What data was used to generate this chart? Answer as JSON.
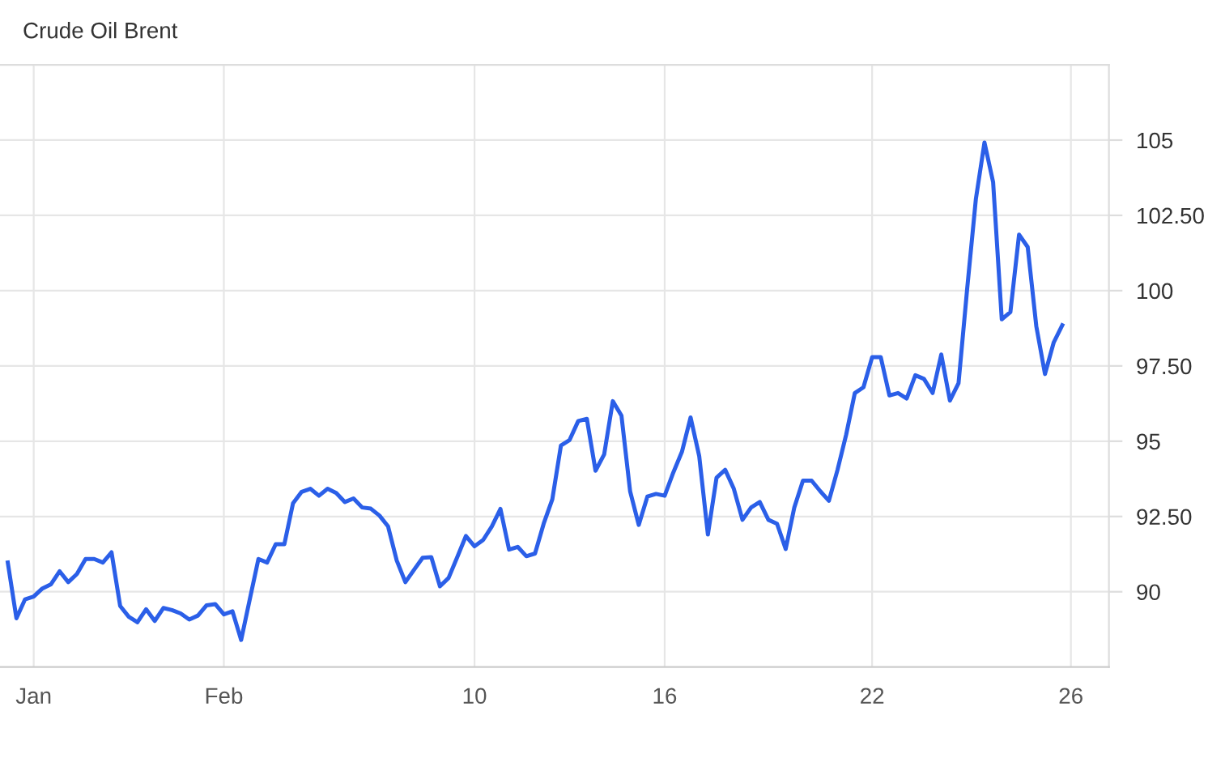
{
  "chart_data": {
    "type": "line",
    "title": "Crude Oil Brent",
    "categories": [
      null,
      null,
      null,
      "Jan",
      null,
      null,
      null,
      null,
      null,
      null,
      null,
      null,
      null,
      null,
      null,
      null,
      null,
      null,
      null,
      null,
      null,
      null,
      null,
      null,
      null,
      "Feb",
      null,
      null,
      null,
      null,
      null,
      null,
      null,
      null,
      null,
      null,
      null,
      null,
      null,
      null,
      null,
      null,
      null,
      null,
      null,
      null,
      null,
      null,
      null,
      null,
      null,
      null,
      null,
      null,
      "10",
      null,
      null,
      null,
      null,
      null,
      null,
      null,
      null,
      null,
      null,
      null,
      null,
      null,
      null,
      null,
      null,
      null,
      null,
      null,
      null,
      null,
      "16",
      null,
      null,
      null,
      null,
      null,
      null,
      null,
      null,
      null,
      null,
      null,
      null,
      null,
      null,
      null,
      null,
      null,
      null,
      null,
      null,
      null,
      null,
      null,
      "22",
      null,
      null,
      null,
      null,
      null,
      null,
      null,
      null,
      null,
      null,
      null,
      null,
      null,
      null,
      null,
      null,
      null,
      null,
      null,
      null,
      null,
      null,
      "26"
    ],
    "series": [
      {
        "color": "#2b5fe8",
        "values": [
          90.97,
          89.12,
          89.75,
          89.84,
          90.11,
          90.25,
          90.68,
          90.32,
          90.59,
          91.09,
          91.09,
          90.97,
          91.31,
          89.53,
          89.17,
          88.99,
          89.42,
          89.03,
          89.46,
          89.39,
          89.28,
          89.08,
          89.21,
          89.55,
          89.59,
          89.25,
          89.35,
          88.4,
          89.75,
          91.09,
          90.97,
          91.58,
          91.58,
          92.94,
          93.32,
          93.42,
          93.19,
          93.42,
          93.28,
          92.98,
          93.1,
          92.8,
          92.76,
          92.53,
          92.17,
          91.04,
          90.32,
          90.73,
          91.13,
          91.15,
          90.18,
          90.46,
          91.15,
          91.85,
          91.51,
          91.72,
          92.17,
          92.75,
          91.4,
          91.49,
          91.18,
          91.27,
          92.26,
          93.07,
          94.86,
          95.04,
          95.67,
          95.74,
          94.02,
          94.56,
          96.33,
          95.85,
          93.34,
          92.22,
          93.16,
          93.25,
          93.19,
          93.96,
          94.65,
          95.79,
          94.5,
          91.9,
          93.79,
          94.05,
          93.42,
          92.39,
          92.8,
          92.98,
          92.39,
          92.26,
          91.42,
          92.8,
          93.69,
          93.69,
          93.34,
          93.02,
          94.05,
          95.22,
          96.6,
          96.79,
          97.79,
          97.79,
          96.52,
          96.6,
          96.42,
          97.19,
          97.07,
          96.6,
          97.88,
          96.35,
          96.93,
          100.07,
          103.03,
          104.92,
          103.6,
          99.05,
          99.29,
          101.86,
          101.45,
          98.81,
          97.23,
          98.27,
          98.85,
          null
        ]
      }
    ],
    "ylim": [
      87.5,
      107.5
    ],
    "yticks": [
      90,
      {
        "value": 92.5,
        "label": "92.50"
      },
      95,
      {
        "value": 97.5,
        "label": "97.50"
      },
      100,
      {
        "value": 102.5,
        "label": "102.50"
      },
      105
    ],
    "grid": true,
    "marker": "none",
    "line_style": "solid"
  }
}
